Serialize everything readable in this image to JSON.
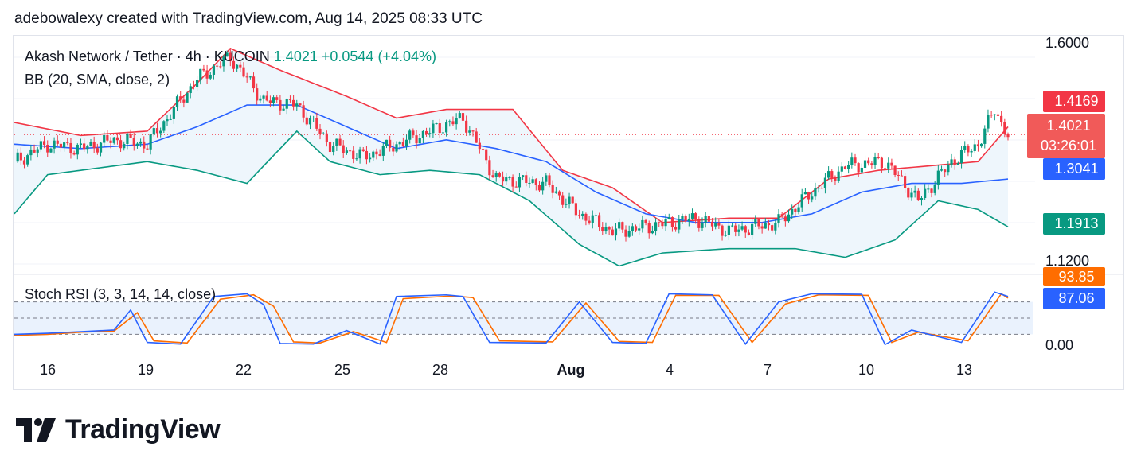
{
  "header": {
    "caption": "adebowalexy created with TradingView.com, Aug 14, 2025 08:33 UTC"
  },
  "legend": {
    "symbol": "Akash Network / Tether · 4h · KUCOIN",
    "last": "1.4021",
    "change": "+0.0544 (+4.04%)",
    "bb": "BB (20, SMA, close, 2)",
    "stoch": "Stoch RSI (3, 3, 14, 14, close)"
  },
  "price_axis": {
    "top": "1.6000",
    "bottom": "1.1200"
  },
  "tags": {
    "upper": "1.4169",
    "last": "1.4021",
    "countdown": "03:26:01",
    "middle": "1.3041",
    "lower": "1.1913",
    "k": "93.85",
    "d": "87.06",
    "zero": "0.00"
  },
  "colors": {
    "up": "#089981",
    "down": "#f23645",
    "basis": "#2962ff",
    "upper_band": "#f23645",
    "lower_band": "#089981",
    "k_line": "#2962ff",
    "d_line": "#ff6d00",
    "band_fill": "#eef6fc"
  },
  "brand": {
    "name": "TradingView",
    "icon": "tradingview-logo-icon"
  },
  "chart_data": [
    {
      "type": "candlestick",
      "title": "Akash Network / Tether · 4h · KUCOIN",
      "x_ticks": [
        "16",
        "19",
        "22",
        "25",
        "28",
        "Aug",
        "4",
        "7",
        "10",
        "13"
      ],
      "y_ticks": [
        "1.1200",
        "1.6000"
      ],
      "ylim": [
        1.09,
        1.62
      ],
      "last_price": 1.4021,
      "close_path": [
        {
          "t": 0,
          "close": 1.34
        },
        {
          "t": 10,
          "close": 1.38
        },
        {
          "t": 20,
          "close": 1.37
        },
        {
          "t": 30,
          "close": 1.39
        },
        {
          "t": 40,
          "close": 1.38
        },
        {
          "t": 55,
          "close": 1.53
        },
        {
          "t": 65,
          "close": 1.58
        },
        {
          "t": 75,
          "close": 1.48
        },
        {
          "t": 85,
          "close": 1.47
        },
        {
          "t": 95,
          "close": 1.38
        },
        {
          "t": 105,
          "close": 1.35
        },
        {
          "t": 115,
          "close": 1.38
        },
        {
          "t": 125,
          "close": 1.41
        },
        {
          "t": 135,
          "close": 1.44
        },
        {
          "t": 145,
          "close": 1.3
        },
        {
          "t": 160,
          "close": 1.29
        },
        {
          "t": 170,
          "close": 1.22
        },
        {
          "t": 180,
          "close": 1.18
        },
        {
          "t": 190,
          "close": 1.19
        },
        {
          "t": 205,
          "close": 1.21
        },
        {
          "t": 215,
          "close": 1.18
        },
        {
          "t": 230,
          "close": 1.2
        },
        {
          "t": 240,
          "close": 1.27
        },
        {
          "t": 250,
          "close": 1.33
        },
        {
          "t": 262,
          "close": 1.34
        },
        {
          "t": 272,
          "close": 1.25
        },
        {
          "t": 282,
          "close": 1.34
        },
        {
          "t": 290,
          "close": 1.38
        },
        {
          "t": 295,
          "close": 1.46
        },
        {
          "t": 299,
          "close": 1.4
        }
      ],
      "bollinger": {
        "upper_last": 1.4169,
        "basis_last": 1.3041,
        "lower_last": 1.1913,
        "upper": [
          [
            0,
            1.43
          ],
          [
            20,
            1.4
          ],
          [
            40,
            1.41
          ],
          [
            55,
            1.52
          ],
          [
            65,
            1.6
          ],
          [
            80,
            1.55
          ],
          [
            100,
            1.49
          ],
          [
            115,
            1.44
          ],
          [
            130,
            1.46
          ],
          [
            150,
            1.46
          ],
          [
            165,
            1.32
          ],
          [
            180,
            1.28
          ],
          [
            195,
            1.2
          ],
          [
            215,
            1.21
          ],
          [
            230,
            1.21
          ],
          [
            245,
            1.3
          ],
          [
            260,
            1.32
          ],
          [
            275,
            1.33
          ],
          [
            290,
            1.34
          ],
          [
            299,
            1.42
          ]
        ],
        "basis": [
          [
            0,
            1.38
          ],
          [
            20,
            1.37
          ],
          [
            40,
            1.38
          ],
          [
            55,
            1.42
          ],
          [
            70,
            1.47
          ],
          [
            85,
            1.47
          ],
          [
            100,
            1.42
          ],
          [
            115,
            1.37
          ],
          [
            130,
            1.39
          ],
          [
            145,
            1.37
          ],
          [
            160,
            1.34
          ],
          [
            175,
            1.27
          ],
          [
            190,
            1.22
          ],
          [
            205,
            1.2
          ],
          [
            225,
            1.2
          ],
          [
            240,
            1.22
          ],
          [
            255,
            1.27
          ],
          [
            270,
            1.29
          ],
          [
            285,
            1.29
          ],
          [
            299,
            1.3
          ]
        ],
        "lower": [
          [
            0,
            1.22
          ],
          [
            10,
            1.31
          ],
          [
            40,
            1.34
          ],
          [
            55,
            1.32
          ],
          [
            70,
            1.29
          ],
          [
            85,
            1.41
          ],
          [
            95,
            1.34
          ],
          [
            110,
            1.31
          ],
          [
            125,
            1.32
          ],
          [
            140,
            1.31
          ],
          [
            155,
            1.25
          ],
          [
            170,
            1.15
          ],
          [
            182,
            1.1
          ],
          [
            195,
            1.13
          ],
          [
            215,
            1.14
          ],
          [
            235,
            1.14
          ],
          [
            250,
            1.12
          ],
          [
            265,
            1.16
          ],
          [
            278,
            1.25
          ],
          [
            290,
            1.23
          ],
          [
            299,
            1.19
          ]
        ]
      }
    },
    {
      "type": "line",
      "title": "Stoch RSI (3, 3, 14, 14, close)",
      "ylim": [
        0,
        100
      ],
      "y_ticks": [
        "0.00"
      ],
      "series": [
        {
          "values_last": 93.85,
          "points": [
            [
              0,
              20
            ],
            [
              10,
              22
            ],
            [
              20,
              25
            ],
            [
              30,
              28
            ],
            [
              35,
              65
            ],
            [
              40,
              5
            ],
            [
              50,
              2
            ],
            [
              60,
              90
            ],
            [
              70,
              95
            ],
            [
              75,
              75
            ],
            [
              80,
              3
            ],
            [
              90,
              2
            ],
            [
              100,
              27
            ],
            [
              110,
              2
            ],
            [
              115,
              90
            ],
            [
              130,
              93
            ],
            [
              135,
              90
            ],
            [
              143,
              5
            ],
            [
              160,
              4
            ],
            [
              170,
              80
            ],
            [
              180,
              5
            ],
            [
              190,
              3
            ],
            [
              197,
              95
            ],
            [
              210,
              93
            ],
            [
              220,
              2
            ],
            [
              230,
              80
            ],
            [
              240,
              95
            ],
            [
              255,
              94
            ],
            [
              262,
              1
            ],
            [
              270,
              28
            ],
            [
              285,
              5
            ],
            [
              295,
              98
            ],
            [
              299,
              90
            ]
          ]
        },
        {
          "values_last": 87.06,
          "points": [
            [
              0,
              18
            ],
            [
              10,
              20
            ],
            [
              20,
              24
            ],
            [
              30,
              26
            ],
            [
              37,
              60
            ],
            [
              42,
              8
            ],
            [
              52,
              4
            ],
            [
              62,
              85
            ],
            [
              72,
              93
            ],
            [
              78,
              72
            ],
            [
              84,
              6
            ],
            [
              92,
              4
            ],
            [
              102,
              25
            ],
            [
              112,
              5
            ],
            [
              117,
              86
            ],
            [
              132,
              91
            ],
            [
              138,
              88
            ],
            [
              146,
              8
            ],
            [
              162,
              6
            ],
            [
              172,
              78
            ],
            [
              182,
              7
            ],
            [
              192,
              5
            ],
            [
              199,
              92
            ],
            [
              212,
              92
            ],
            [
              222,
              5
            ],
            [
              232,
              76
            ],
            [
              242,
              93
            ],
            [
              257,
              92
            ],
            [
              264,
              5
            ],
            [
              272,
              24
            ],
            [
              287,
              8
            ],
            [
              297,
              95
            ],
            [
              299,
              87
            ]
          ]
        }
      ],
      "levels": [
        80,
        20
      ]
    }
  ]
}
